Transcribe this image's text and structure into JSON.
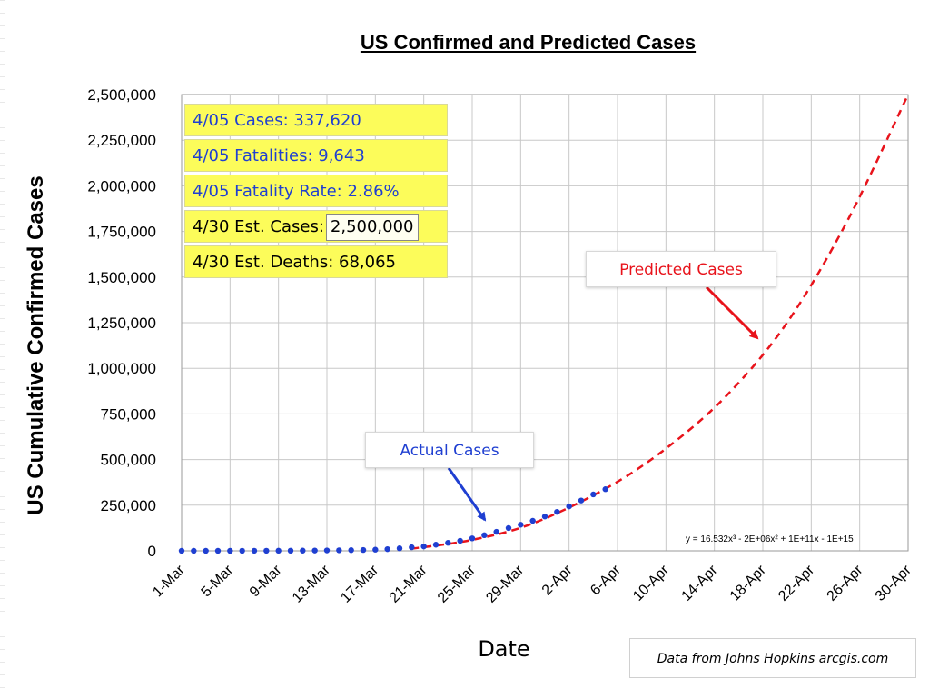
{
  "colors": {
    "actual": "#1f3fd1",
    "predicted": "#e8131b",
    "box_fill": "#fcfc5a",
    "grid": "#c8c8c8"
  },
  "stats_box": {
    "cases": "4/05 Cases: 337,620",
    "fatalities": "4/05 Fatalities: 9,643",
    "fatality_rate": "4/05 Fatality Rate: 2.86%",
    "est_cases_label": "4/30 Est. Cases:",
    "est_cases_value": "2,500,000",
    "est_deaths": "4/30 Est. Deaths: 68,065"
  },
  "annotations": {
    "predicted": "Predicted Cases",
    "actual": "Actual Cases",
    "equation": "y = 16.532x³ - 2E+06x² + 1E+11x - 1E+15",
    "source": "Data from Johns Hopkins arcgis.com"
  },
  "chart_data": {
    "type": "line",
    "title": "US Confirmed and Predicted Cases",
    "xlabel": "Date",
    "ylabel": "US Cumulative Confirmed Cases",
    "x_ticks": [
      "1-Mar",
      "5-Mar",
      "9-Mar",
      "13-Mar",
      "17-Mar",
      "21-Mar",
      "25-Mar",
      "29-Mar",
      "2-Apr",
      "6-Apr",
      "10-Apr",
      "14-Apr",
      "18-Apr",
      "22-Apr",
      "26-Apr",
      "30-Apr"
    ],
    "y_ticks": [
      "0",
      "250,000",
      "500,000",
      "750,000",
      "1,000,000",
      "1,250,000",
      "1,500,000",
      "1,750,000",
      "2,000,000",
      "2,250,000",
      "2,500,000"
    ],
    "ylim": [
      0,
      2500000
    ],
    "x_range": [
      "1-Mar",
      "30-Apr"
    ],
    "grid": true,
    "legend": "none",
    "series": [
      {
        "name": "Actual Cases",
        "style": "markers",
        "color": "#1f3fd1",
        "x": [
          "1-Mar",
          "2-Mar",
          "3-Mar",
          "4-Mar",
          "5-Mar",
          "6-Mar",
          "7-Mar",
          "8-Mar",
          "9-Mar",
          "10-Mar",
          "11-Mar",
          "12-Mar",
          "13-Mar",
          "14-Mar",
          "15-Mar",
          "16-Mar",
          "17-Mar",
          "18-Mar",
          "19-Mar",
          "20-Mar",
          "21-Mar",
          "22-Mar",
          "23-Mar",
          "24-Mar",
          "25-Mar",
          "26-Mar",
          "27-Mar",
          "28-Mar",
          "29-Mar",
          "30-Mar",
          "31-Mar",
          "1-Apr",
          "2-Apr",
          "3-Apr",
          "4-Apr",
          "5-Apr"
        ],
        "y": [
          75,
          100,
          124,
          158,
          221,
          319,
          435,
          541,
          704,
          994,
          1301,
          1697,
          2247,
          2943,
          3680,
          4663,
          6411,
          9197,
          13779,
          19367,
          24192,
          33592,
          43781,
          54856,
          68211,
          85435,
          104126,
          124686,
          143055,
          164359,
          188172,
          213362,
          243453,
          275586,
          308850,
          337620
        ]
      },
      {
        "name": "Predicted Cases",
        "style": "dashed",
        "color": "#e8131b",
        "x": [
          "20-Mar",
          "25-Mar",
          "30-Mar",
          "5-Apr",
          "10-Apr",
          "15-Apr",
          "20-Apr",
          "25-Apr",
          "30-Apr"
        ],
        "y": [
          12000,
          60000,
          150000,
          340000,
          560000,
          850000,
          1250000,
          1810000,
          2500000
        ]
      }
    ]
  }
}
